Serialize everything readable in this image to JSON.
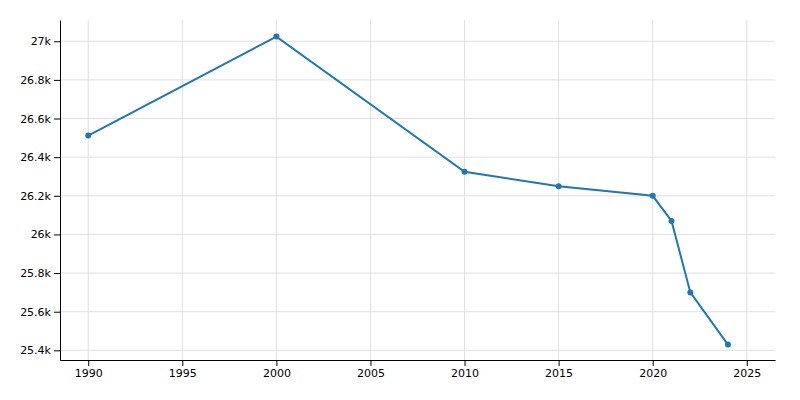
{
  "chart_data": {
    "type": "line",
    "x": [
      1990,
      2000,
      2010,
      2015,
      2020,
      2021,
      2022,
      2024
    ],
    "values": [
      26512,
      27024,
      26324,
      26250,
      26200,
      26070,
      25700,
      25430
    ],
    "marker": "circle",
    "xlim": [
      1988.5,
      2026.5
    ],
    "ylim": [
      25350,
      27110
    ],
    "xticks": [
      1990,
      1995,
      2000,
      2005,
      2010,
      2015,
      2020,
      2025
    ],
    "yticks": [
      {
        "value": 25400,
        "label": "25.4k"
      },
      {
        "value": 25600,
        "label": "25.6k"
      },
      {
        "value": 25800,
        "label": "25.8k"
      },
      {
        "value": 26000,
        "label": "26k"
      },
      {
        "value": 26200,
        "label": "26.2k"
      },
      {
        "value": 26400,
        "label": "26.4k"
      },
      {
        "value": 26600,
        "label": "26.6k"
      },
      {
        "value": 26800,
        "label": "26.8k"
      },
      {
        "value": 27000,
        "label": "27k"
      }
    ],
    "grid": true
  }
}
